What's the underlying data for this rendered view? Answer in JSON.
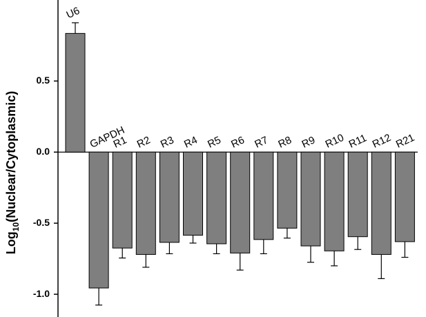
{
  "chart_data": {
    "type": "bar",
    "y_label": {
      "text": "Log",
      "sub": "10",
      "rest": "(Nuclear/Cytoplasmic)"
    },
    "categories": [
      "U6",
      "GAPDH",
      "R1",
      "R2",
      "R3",
      "R4",
      "R5",
      "R6",
      "R7",
      "R8",
      "R9",
      "R10",
      "R11",
      "R12",
      "R21"
    ],
    "values": [
      0.835,
      -0.956,
      -0.675,
      -0.72,
      -0.635,
      -0.585,
      -0.645,
      -0.71,
      -0.615,
      -0.535,
      -0.66,
      -0.695,
      -0.595,
      -0.72,
      -0.63
    ],
    "errors": [
      0.075,
      0.12,
      0.07,
      0.09,
      0.08,
      0.055,
      0.07,
      0.12,
      0.1,
      0.07,
      0.115,
      0.105,
      0.09,
      0.17,
      0.11
    ],
    "color": "#7f7f7f",
    "ylim": [
      -1.16,
      1.07
    ],
    "yticks": [
      {
        "value": -1.0,
        "label": "-1.0"
      },
      -0.5,
      {
        "value": 0,
        "label": "0.0"
      },
      0.5
    ]
  }
}
